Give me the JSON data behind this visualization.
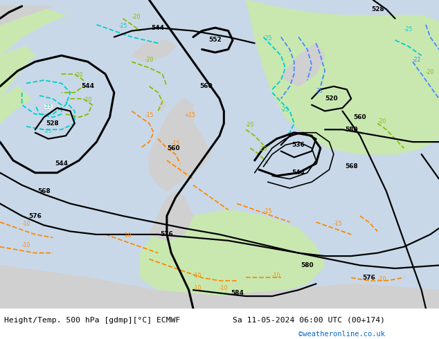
{
  "title_left": "Height/Temp. 500 hPa [gdmp][°C] ECMWF",
  "title_right": "Sa 11-05-2024 06:00 UTC (00+174)",
  "credit": "©weatheronline.co.uk",
  "fig_width": 6.34,
  "fig_height": 4.9,
  "credit_color": "#0066cc",
  "sea_color": "#c8d8e8",
  "land_color": "#d0d0d0",
  "green_color": "#c8e8b0",
  "white_bar": "#ffffff",
  "black": "#000000",
  "cyan_temp": "#00cccc",
  "blue_temp": "#4488ff",
  "green_temp": "#88bb00",
  "orange_temp": "#ff8800"
}
